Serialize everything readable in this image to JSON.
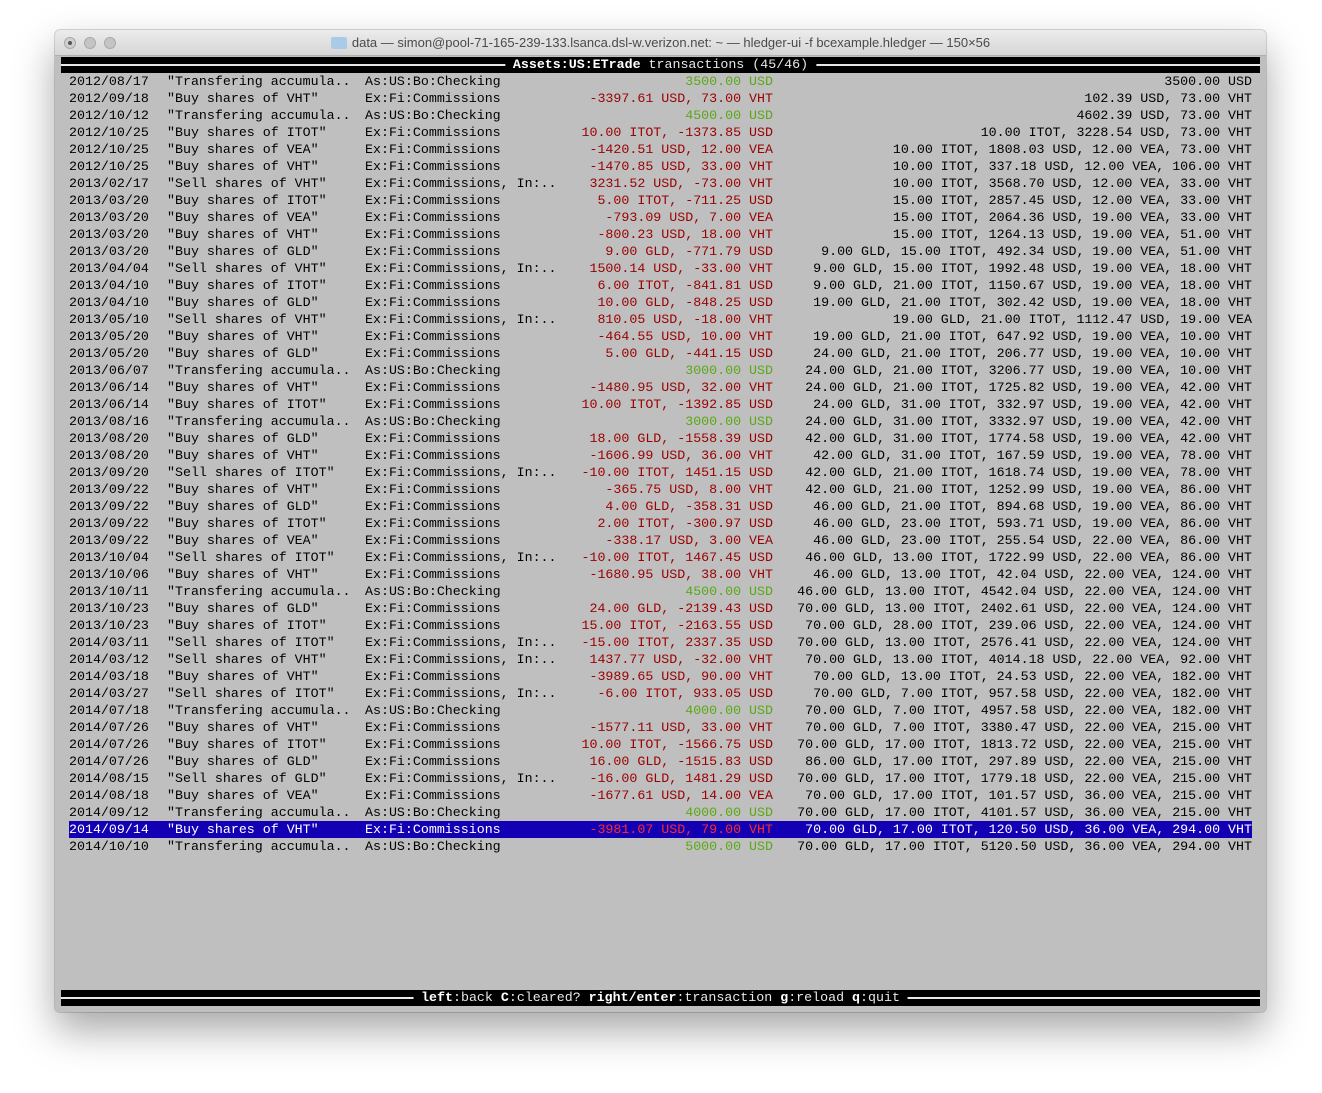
{
  "window": {
    "title": "data — simon@pool-71-165-239-133.lsanca.dsl-w.verizon.net: ~ — hledger-ui -f bcexample.hledger — 150×56"
  },
  "header": {
    "account": "Assets:US:ETrade",
    "suffix": " transactions (45/46)"
  },
  "colors": {
    "positive": "#5aa815",
    "negative": "#9a0000",
    "selection": "#1400b4",
    "background": "#bfbfbf"
  },
  "selected_index": 44,
  "rows": [
    {
      "date": "2012/08/17",
      "desc": "\"Transfering accumula..",
      "account": "As:US:Bo:Checking",
      "amount": "3500.00 USD",
      "kind": "in",
      "balance": "3500.00 USD"
    },
    {
      "date": "2012/09/18",
      "desc": "\"Buy shares of VHT\"",
      "account": "Ex:Fi:Commissions",
      "amount": "-3397.61 USD, 73.00 VHT",
      "kind": "out",
      "balance": "102.39 USD, 73.00 VHT"
    },
    {
      "date": "2012/10/12",
      "desc": "\"Transfering accumula..",
      "account": "As:US:Bo:Checking",
      "amount": "4500.00 USD",
      "kind": "in",
      "balance": "4602.39 USD, 73.00 VHT"
    },
    {
      "date": "2012/10/25",
      "desc": "\"Buy shares of ITOT\"",
      "account": "Ex:Fi:Commissions",
      "amount": "10.00 ITOT, -1373.85 USD",
      "kind": "out",
      "balance": "10.00 ITOT, 3228.54 USD, 73.00 VHT"
    },
    {
      "date": "2012/10/25",
      "desc": "\"Buy shares of VEA\"",
      "account": "Ex:Fi:Commissions",
      "amount": "-1420.51 USD, 12.00 VEA",
      "kind": "out",
      "balance": "10.00 ITOT, 1808.03 USD, 12.00 VEA, 73.00 VHT"
    },
    {
      "date": "2012/10/25",
      "desc": "\"Buy shares of VHT\"",
      "account": "Ex:Fi:Commissions",
      "amount": "-1470.85 USD, 33.00 VHT",
      "kind": "out",
      "balance": "10.00 ITOT, 337.18 USD, 12.00 VEA, 106.00 VHT"
    },
    {
      "date": "2013/02/17",
      "desc": "\"Sell shares of VHT\"",
      "account": "Ex:Fi:Commissions, In:..",
      "amount": "3231.52 USD, -73.00 VHT",
      "kind": "out",
      "balance": "10.00 ITOT, 3568.70 USD, 12.00 VEA, 33.00 VHT"
    },
    {
      "date": "2013/03/20",
      "desc": "\"Buy shares of ITOT\"",
      "account": "Ex:Fi:Commissions",
      "amount": "5.00 ITOT, -711.25 USD",
      "kind": "out",
      "balance": "15.00 ITOT, 2857.45 USD, 12.00 VEA, 33.00 VHT"
    },
    {
      "date": "2013/03/20",
      "desc": "\"Buy shares of VEA\"",
      "account": "Ex:Fi:Commissions",
      "amount": "-793.09 USD, 7.00 VEA",
      "kind": "out",
      "balance": "15.00 ITOT, 2064.36 USD, 19.00 VEA, 33.00 VHT"
    },
    {
      "date": "2013/03/20",
      "desc": "\"Buy shares of VHT\"",
      "account": "Ex:Fi:Commissions",
      "amount": "-800.23 USD, 18.00 VHT",
      "kind": "out",
      "balance": "15.00 ITOT, 1264.13 USD, 19.00 VEA, 51.00 VHT"
    },
    {
      "date": "2013/03/20",
      "desc": "\"Buy shares of GLD\"",
      "account": "Ex:Fi:Commissions",
      "amount": "9.00 GLD, -771.79 USD",
      "kind": "out",
      "balance": "9.00 GLD, 15.00 ITOT, 492.34 USD, 19.00 VEA, 51.00 VHT"
    },
    {
      "date": "2013/04/04",
      "desc": "\"Sell shares of VHT\"",
      "account": "Ex:Fi:Commissions, In:..",
      "amount": "1500.14 USD, -33.00 VHT",
      "kind": "out",
      "balance": "9.00 GLD, 15.00 ITOT, 1992.48 USD, 19.00 VEA, 18.00 VHT"
    },
    {
      "date": "2013/04/10",
      "desc": "\"Buy shares of ITOT\"",
      "account": "Ex:Fi:Commissions",
      "amount": "6.00 ITOT, -841.81 USD",
      "kind": "out",
      "balance": "9.00 GLD, 21.00 ITOT, 1150.67 USD, 19.00 VEA, 18.00 VHT"
    },
    {
      "date": "2013/04/10",
      "desc": "\"Buy shares of GLD\"",
      "account": "Ex:Fi:Commissions",
      "amount": "10.00 GLD, -848.25 USD",
      "kind": "out",
      "balance": "19.00 GLD, 21.00 ITOT, 302.42 USD, 19.00 VEA, 18.00 VHT"
    },
    {
      "date": "2013/05/10",
      "desc": "\"Sell shares of VHT\"",
      "account": "Ex:Fi:Commissions, In:..",
      "amount": "810.05 USD, -18.00 VHT",
      "kind": "out",
      "balance": "19.00 GLD, 21.00 ITOT, 1112.47 USD, 19.00 VEA"
    },
    {
      "date": "2013/05/20",
      "desc": "\"Buy shares of VHT\"",
      "account": "Ex:Fi:Commissions",
      "amount": "-464.55 USD, 10.00 VHT",
      "kind": "out",
      "balance": "19.00 GLD, 21.00 ITOT, 647.92 USD, 19.00 VEA, 10.00 VHT"
    },
    {
      "date": "2013/05/20",
      "desc": "\"Buy shares of GLD\"",
      "account": "Ex:Fi:Commissions",
      "amount": "5.00 GLD, -441.15 USD",
      "kind": "out",
      "balance": "24.00 GLD, 21.00 ITOT, 206.77 USD, 19.00 VEA, 10.00 VHT"
    },
    {
      "date": "2013/06/07",
      "desc": "\"Transfering accumula..",
      "account": "As:US:Bo:Checking",
      "amount": "3000.00 USD",
      "kind": "in",
      "balance": "24.00 GLD, 21.00 ITOT, 3206.77 USD, 19.00 VEA, 10.00 VHT"
    },
    {
      "date": "2013/06/14",
      "desc": "\"Buy shares of VHT\"",
      "account": "Ex:Fi:Commissions",
      "amount": "-1480.95 USD, 32.00 VHT",
      "kind": "out",
      "balance": "24.00 GLD, 21.00 ITOT, 1725.82 USD, 19.00 VEA, 42.00 VHT"
    },
    {
      "date": "2013/06/14",
      "desc": "\"Buy shares of ITOT\"",
      "account": "Ex:Fi:Commissions",
      "amount": "10.00 ITOT, -1392.85 USD",
      "kind": "out",
      "balance": "24.00 GLD, 31.00 ITOT, 332.97 USD, 19.00 VEA, 42.00 VHT"
    },
    {
      "date": "2013/08/16",
      "desc": "\"Transfering accumula..",
      "account": "As:US:Bo:Checking",
      "amount": "3000.00 USD",
      "kind": "in",
      "balance": "24.00 GLD, 31.00 ITOT, 3332.97 USD, 19.00 VEA, 42.00 VHT"
    },
    {
      "date": "2013/08/20",
      "desc": "\"Buy shares of GLD\"",
      "account": "Ex:Fi:Commissions",
      "amount": "18.00 GLD, -1558.39 USD",
      "kind": "out",
      "balance": "42.00 GLD, 31.00 ITOT, 1774.58 USD, 19.00 VEA, 42.00 VHT"
    },
    {
      "date": "2013/08/20",
      "desc": "\"Buy shares of VHT\"",
      "account": "Ex:Fi:Commissions",
      "amount": "-1606.99 USD, 36.00 VHT",
      "kind": "out",
      "balance": "42.00 GLD, 31.00 ITOT, 167.59 USD, 19.00 VEA, 78.00 VHT"
    },
    {
      "date": "2013/09/20",
      "desc": "\"Sell shares of ITOT\"",
      "account": "Ex:Fi:Commissions, In:..",
      "amount": "-10.00 ITOT, 1451.15 USD",
      "kind": "out",
      "balance": "42.00 GLD, 21.00 ITOT, 1618.74 USD, 19.00 VEA, 78.00 VHT"
    },
    {
      "date": "2013/09/22",
      "desc": "\"Buy shares of VHT\"",
      "account": "Ex:Fi:Commissions",
      "amount": "-365.75 USD, 8.00 VHT",
      "kind": "out",
      "balance": "42.00 GLD, 21.00 ITOT, 1252.99 USD, 19.00 VEA, 86.00 VHT"
    },
    {
      "date": "2013/09/22",
      "desc": "\"Buy shares of GLD\"",
      "account": "Ex:Fi:Commissions",
      "amount": "4.00 GLD, -358.31 USD",
      "kind": "out",
      "balance": "46.00 GLD, 21.00 ITOT, 894.68 USD, 19.00 VEA, 86.00 VHT"
    },
    {
      "date": "2013/09/22",
      "desc": "\"Buy shares of ITOT\"",
      "account": "Ex:Fi:Commissions",
      "amount": "2.00 ITOT, -300.97 USD",
      "kind": "out",
      "balance": "46.00 GLD, 23.00 ITOT, 593.71 USD, 19.00 VEA, 86.00 VHT"
    },
    {
      "date": "2013/09/22",
      "desc": "\"Buy shares of VEA\"",
      "account": "Ex:Fi:Commissions",
      "amount": "-338.17 USD, 3.00 VEA",
      "kind": "out",
      "balance": "46.00 GLD, 23.00 ITOT, 255.54 USD, 22.00 VEA, 86.00 VHT"
    },
    {
      "date": "2013/10/04",
      "desc": "\"Sell shares of ITOT\"",
      "account": "Ex:Fi:Commissions, In:..",
      "amount": "-10.00 ITOT, 1467.45 USD",
      "kind": "out",
      "balance": "46.00 GLD, 13.00 ITOT, 1722.99 USD, 22.00 VEA, 86.00 VHT"
    },
    {
      "date": "2013/10/06",
      "desc": "\"Buy shares of VHT\"",
      "account": "Ex:Fi:Commissions",
      "amount": "-1680.95 USD, 38.00 VHT",
      "kind": "out",
      "balance": "46.00 GLD, 13.00 ITOT, 42.04 USD, 22.00 VEA, 124.00 VHT"
    },
    {
      "date": "2013/10/11",
      "desc": "\"Transfering accumula..",
      "account": "As:US:Bo:Checking",
      "amount": "4500.00 USD",
      "kind": "in",
      "balance": "46.00 GLD, 13.00 ITOT, 4542.04 USD, 22.00 VEA, 124.00 VHT"
    },
    {
      "date": "2013/10/23",
      "desc": "\"Buy shares of GLD\"",
      "account": "Ex:Fi:Commissions",
      "amount": "24.00 GLD, -2139.43 USD",
      "kind": "out",
      "balance": "70.00 GLD, 13.00 ITOT, 2402.61 USD, 22.00 VEA, 124.00 VHT"
    },
    {
      "date": "2013/10/23",
      "desc": "\"Buy shares of ITOT\"",
      "account": "Ex:Fi:Commissions",
      "amount": "15.00 ITOT, -2163.55 USD",
      "kind": "out",
      "balance": "70.00 GLD, 28.00 ITOT, 239.06 USD, 22.00 VEA, 124.00 VHT"
    },
    {
      "date": "2014/03/11",
      "desc": "\"Sell shares of ITOT\"",
      "account": "Ex:Fi:Commissions, In:..",
      "amount": "-15.00 ITOT, 2337.35 USD",
      "kind": "out",
      "balance": "70.00 GLD, 13.00 ITOT, 2576.41 USD, 22.00 VEA, 124.00 VHT"
    },
    {
      "date": "2014/03/12",
      "desc": "\"Sell shares of VHT\"",
      "account": "Ex:Fi:Commissions, In:..",
      "amount": "1437.77 USD, -32.00 VHT",
      "kind": "out",
      "balance": "70.00 GLD, 13.00 ITOT, 4014.18 USD, 22.00 VEA, 92.00 VHT"
    },
    {
      "date": "2014/03/18",
      "desc": "\"Buy shares of VHT\"",
      "account": "Ex:Fi:Commissions",
      "amount": "-3989.65 USD, 90.00 VHT",
      "kind": "out",
      "balance": "70.00 GLD, 13.00 ITOT, 24.53 USD, 22.00 VEA, 182.00 VHT"
    },
    {
      "date": "2014/03/27",
      "desc": "\"Sell shares of ITOT\"",
      "account": "Ex:Fi:Commissions, In:..",
      "amount": "-6.00 ITOT, 933.05 USD",
      "kind": "out",
      "balance": "70.00 GLD, 7.00 ITOT, 957.58 USD, 22.00 VEA, 182.00 VHT"
    },
    {
      "date": "2014/07/18",
      "desc": "\"Transfering accumula..",
      "account": "As:US:Bo:Checking",
      "amount": "4000.00 USD",
      "kind": "in",
      "balance": "70.00 GLD, 7.00 ITOT, 4957.58 USD, 22.00 VEA, 182.00 VHT"
    },
    {
      "date": "2014/07/26",
      "desc": "\"Buy shares of VHT\"",
      "account": "Ex:Fi:Commissions",
      "amount": "-1577.11 USD, 33.00 VHT",
      "kind": "out",
      "balance": "70.00 GLD, 7.00 ITOT, 3380.47 USD, 22.00 VEA, 215.00 VHT"
    },
    {
      "date": "2014/07/26",
      "desc": "\"Buy shares of ITOT\"",
      "account": "Ex:Fi:Commissions",
      "amount": "10.00 ITOT, -1566.75 USD",
      "kind": "out",
      "balance": "70.00 GLD, 17.00 ITOT, 1813.72 USD, 22.00 VEA, 215.00 VHT"
    },
    {
      "date": "2014/07/26",
      "desc": "\"Buy shares of GLD\"",
      "account": "Ex:Fi:Commissions",
      "amount": "16.00 GLD, -1515.83 USD",
      "kind": "out",
      "balance": "86.00 GLD, 17.00 ITOT, 297.89 USD, 22.00 VEA, 215.00 VHT"
    },
    {
      "date": "2014/08/15",
      "desc": "\"Sell shares of GLD\"",
      "account": "Ex:Fi:Commissions, In:..",
      "amount": "-16.00 GLD, 1481.29 USD",
      "kind": "out",
      "balance": "70.00 GLD, 17.00 ITOT, 1779.18 USD, 22.00 VEA, 215.00 VHT"
    },
    {
      "date": "2014/08/18",
      "desc": "\"Buy shares of VEA\"",
      "account": "Ex:Fi:Commissions",
      "amount": "-1677.61 USD, 14.00 VEA",
      "kind": "out",
      "balance": "70.00 GLD, 17.00 ITOT, 101.57 USD, 36.00 VEA, 215.00 VHT"
    },
    {
      "date": "2014/09/12",
      "desc": "\"Transfering accumula..",
      "account": "As:US:Bo:Checking",
      "amount": "4000.00 USD",
      "kind": "in",
      "balance": "70.00 GLD, 17.00 ITOT, 4101.57 USD, 36.00 VEA, 215.00 VHT"
    },
    {
      "date": "2014/09/14",
      "desc": "\"Buy shares of VHT\"",
      "account": "Ex:Fi:Commissions",
      "amount": "-3981.07 USD, 79.00 VHT",
      "kind": "out",
      "balance": "70.00 GLD, 17.00 ITOT, 120.50 USD, 36.00 VEA, 294.00 VHT"
    },
    {
      "date": "2014/10/10",
      "desc": "\"Transfering accumula..",
      "account": "As:US:Bo:Checking",
      "amount": "5000.00 USD",
      "kind": "in",
      "balance": "70.00 GLD, 17.00 ITOT, 5120.50 USD, 36.00 VEA, 294.00 VHT"
    }
  ],
  "footer": {
    "keys": [
      {
        "key": "left",
        "action": "back"
      },
      {
        "key": "C",
        "action": "cleared?"
      },
      {
        "key": "right/enter",
        "action": "transaction"
      },
      {
        "key": "g",
        "action": "reload"
      },
      {
        "key": "q",
        "action": "quit"
      }
    ]
  }
}
